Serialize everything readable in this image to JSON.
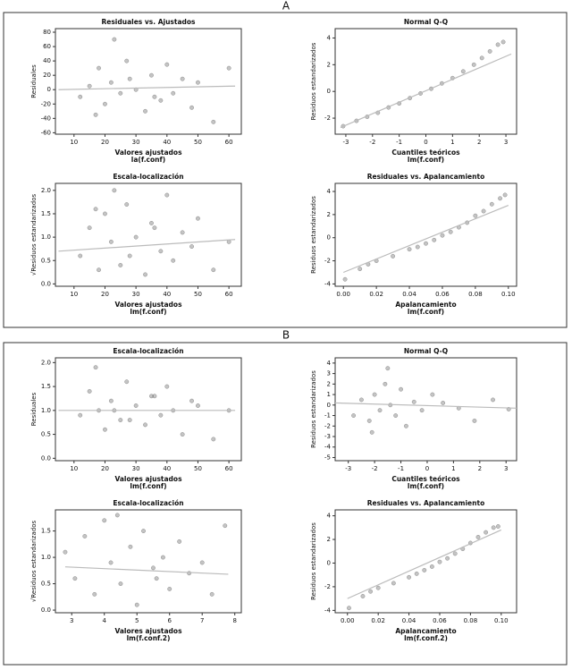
{
  "sections": [
    "A",
    "B"
  ],
  "chart_data": [
    {
      "type": "scatter",
      "title": "Residuales vs. Ajustados",
      "xlabel": [
        "Valores ajustados",
        "la(f.conf)"
      ],
      "ylabel": "Residuales",
      "xlim": [
        4,
        64
      ],
      "xticks": [
        10,
        20,
        30,
        40,
        50,
        60
      ],
      "ylim": [
        -62,
        85
      ],
      "yticks": [
        -60,
        -40,
        -20,
        0,
        20,
        40,
        60,
        80
      ],
      "color": "#555555",
      "fit_color": "#bbbbbb",
      "x": [
        12,
        15,
        18,
        20,
        22,
        25,
        27,
        30,
        33,
        35,
        38,
        40,
        42,
        45,
        48,
        50,
        55,
        60,
        17,
        28,
        36,
        23
      ],
      "y": [
        -10,
        5,
        30,
        -20,
        10,
        -5,
        40,
        0,
        -30,
        20,
        -15,
        35,
        -5,
        15,
        -25,
        10,
        -45,
        30,
        -35,
        15,
        -10,
        70
      ],
      "fit": {
        "x": [
          5,
          62
        ],
        "y": [
          0,
          5
        ]
      }
    },
    {
      "type": "scatter",
      "title": "Normal Q-Q",
      "xlabel": [
        "Cuantiles teóricos",
        "lm(f.conf)"
      ],
      "ylabel": "Residuos estandarizados",
      "xlim": [
        -3.4,
        3.4
      ],
      "xticks": [
        -3,
        -2,
        -1,
        0,
        1,
        2,
        3
      ],
      "ylim": [
        -3.2,
        4.7
      ],
      "yticks": [
        -2,
        0,
        2,
        4
      ],
      "color": "#555555",
      "fit_color": "#bbbbbb",
      "x": [
        -3.1,
        -2.6,
        -2.2,
        -1.8,
        -1.4,
        -1,
        -0.6,
        -0.2,
        0.2,
        0.6,
        1,
        1.4,
        1.8,
        2.1,
        2.4,
        2.7,
        2.9
      ],
      "y": [
        -2.6,
        -2.2,
        -1.9,
        -1.6,
        -1.2,
        -0.9,
        -0.5,
        -0.15,
        0.2,
        0.6,
        1.0,
        1.5,
        2.0,
        2.5,
        3.0,
        3.5,
        3.7
      ],
      "fit": {
        "x": [
          -3.2,
          3.2
        ],
        "y": [
          -2.7,
          2.8
        ]
      }
    },
    {
      "type": "scatter",
      "title": "Escala-localización",
      "xlabel": [
        "Valores ajustados",
        "lm(f.conf)"
      ],
      "ylabel": "√Residuos estandarizados",
      "xlim": [
        4,
        64
      ],
      "xticks": [
        10,
        20,
        30,
        40,
        50,
        60
      ],
      "ylim": [
        -0.05,
        2.15
      ],
      "yticks": [
        {
          "value": 0,
          "label": "0.0"
        },
        {
          "value": 0.5,
          "label": "0.5"
        },
        {
          "value": 1,
          "label": "1.0"
        },
        {
          "value": 1.5,
          "label": "1.5"
        },
        {
          "value": 2,
          "label": "2.0"
        }
      ],
      "color": "#555555",
      "fit_color": "#bbbbbb",
      "x": [
        12,
        15,
        18,
        20,
        22,
        25,
        27,
        30,
        33,
        35,
        38,
        40,
        42,
        45,
        48,
        50,
        55,
        60,
        17,
        28,
        36,
        23
      ],
      "y": [
        0.6,
        1.2,
        0.3,
        1.5,
        0.9,
        0.4,
        1.7,
        1.0,
        0.2,
        1.3,
        0.7,
        1.9,
        0.5,
        1.1,
        0.8,
        1.4,
        0.3,
        0.9,
        1.6,
        0.6,
        1.2,
        2.0
      ],
      "fit": {
        "x": [
          5,
          62
        ],
        "y": [
          0.7,
          0.95
        ]
      }
    },
    {
      "type": "scatter",
      "title": "Residuales vs. Apalancamiento",
      "xlabel": [
        "Apalancamiento",
        "lm(f.conf)"
      ],
      "ylabel": "Residuos estandarizados",
      "xlim": [
        -0.005,
        0.105
      ],
      "xticks": [
        {
          "value": 0,
          "label": "0.00"
        },
        {
          "value": 0.02,
          "label": "0.02"
        },
        {
          "value": 0.04,
          "label": "0.04"
        },
        {
          "value": 0.06,
          "label": "0.06"
        },
        {
          "value": 0.08,
          "label": "0.08"
        },
        {
          "value": 0.1,
          "label": "0.10"
        }
      ],
      "ylim": [
        -4.2,
        4.7
      ],
      "yticks": [
        -4,
        -2,
        0,
        2,
        4
      ],
      "color": "#555555",
      "fit_color": "#bbbbbb",
      "x": [
        0.001,
        0.01,
        0.015,
        0.02,
        0.03,
        0.04,
        0.045,
        0.05,
        0.055,
        0.06,
        0.065,
        0.07,
        0.075,
        0.08,
        0.085,
        0.09,
        0.095,
        0.098
      ],
      "y": [
        -3.6,
        -2.7,
        -2.3,
        -2.0,
        -1.6,
        -1.0,
        -0.8,
        -0.5,
        -0.2,
        0.2,
        0.5,
        0.9,
        1.3,
        1.9,
        2.3,
        2.9,
        3.4,
        3.7
      ],
      "fit": {
        "x": [
          0,
          0.1
        ],
        "y": [
          -3,
          2.8
        ]
      }
    },
    {
      "type": "scatter",
      "title": "Escala-localización",
      "xlabel": [
        "Valores ajustados",
        "lm(f.conf)"
      ],
      "ylabel": "Residuales",
      "xlim": [
        4,
        64
      ],
      "xticks": [
        10,
        20,
        30,
        40,
        50,
        60
      ],
      "ylim": [
        -0.05,
        2.1
      ],
      "yticks": [
        {
          "value": 0,
          "label": "0.0"
        },
        {
          "value": 0.5,
          "label": "0.5"
        },
        {
          "value": 1,
          "label": "1.0"
        },
        {
          "value": 1.5,
          "label": "1.5"
        },
        {
          "value": 2,
          "label": "2.0"
        }
      ],
      "color": "#555555",
      "fit_color": "#bbbbbb",
      "x": [
        12,
        15,
        18,
        20,
        22,
        25,
        27,
        30,
        33,
        35,
        38,
        40,
        42,
        45,
        48,
        50,
        55,
        60,
        17,
        28,
        36,
        23
      ],
      "y": [
        0.9,
        1.4,
        1.0,
        0.6,
        1.2,
        0.8,
        1.6,
        1.1,
        0.7,
        1.3,
        0.9,
        1.5,
        1.0,
        0.5,
        1.2,
        1.1,
        0.4,
        1.0,
        1.9,
        0.8,
        1.3,
        1.0
      ],
      "fit": {
        "x": [
          5,
          62
        ],
        "y": [
          1.0,
          1.0
        ]
      }
    },
    {
      "type": "scatter",
      "title": "Normal Q-Q",
      "xlabel": [
        "Cuantiles teóricos",
        "lm(f.conf)"
      ],
      "ylabel": "Residuos estandarizados",
      "xlim": [
        -3.5,
        3.4
      ],
      "xticks": [
        -3,
        -2,
        -1,
        0,
        1,
        2,
        3
      ],
      "ylim": [
        -5.3,
        4.5
      ],
      "yticks": [
        -5,
        -4,
        -3,
        -2,
        -1,
        0,
        1,
        2,
        3,
        4
      ],
      "color": "#555555",
      "fit_color": "#bbbbbb",
      "x": [
        -2.8,
        -2.5,
        -2.2,
        -2,
        -1.8,
        -1.6,
        -1.4,
        -1.2,
        -1,
        -0.8,
        -0.5,
        -0.2,
        0.2,
        0.6,
        1.2,
        1.8,
        2.5,
        3.1,
        -1.5,
        -2.1
      ],
      "y": [
        -1,
        0.5,
        -1.5,
        1,
        -0.5,
        2,
        0,
        -1,
        1.5,
        -2,
        0.3,
        -0.5,
        1,
        0.2,
        -0.3,
        -1.5,
        0.5,
        -0.4,
        3.5,
        -2.6
      ],
      "fit": {
        "x": [
          -3.5,
          3.4
        ],
        "y": [
          0.2,
          -0.3
        ]
      }
    },
    {
      "type": "scatter",
      "title": "Escala-localización",
      "xlabel": [
        "Valores ajustados",
        "lm(f.conf.2)"
      ],
      "ylabel": "√Residuos estandarizados",
      "xlim": [
        2.5,
        8.2
      ],
      "xticks": [
        3,
        4,
        5,
        6,
        7,
        8
      ],
      "ylim": [
        -0.05,
        1.9
      ],
      "yticks": [
        {
          "value": 0,
          "label": "0.0"
        },
        {
          "value": 0.5,
          "label": "0.5"
        },
        {
          "value": 1,
          "label": "1.0"
        },
        {
          "value": 1.5,
          "label": "1.5"
        }
      ],
      "color": "#555555",
      "fit_color": "#bbbbbb",
      "x": [
        2.8,
        3.1,
        3.4,
        3.7,
        4,
        4.2,
        4.5,
        4.8,
        5,
        5.2,
        5.5,
        5.8,
        6,
        6.3,
        6.6,
        7,
        7.3,
        7.7,
        4.4,
        5.6
      ],
      "y": [
        1.1,
        0.6,
        1.4,
        0.3,
        1.7,
        0.9,
        0.5,
        1.2,
        0.1,
        1.5,
        0.8,
        1.0,
        0.4,
        1.3,
        0.7,
        0.9,
        0.3,
        1.6,
        1.8,
        0.6
      ],
      "fit": {
        "x": [
          2.8,
          7.8
        ],
        "y": [
          0.82,
          0.68
        ]
      }
    },
    {
      "type": "scatter",
      "title": "Residuales vs. Apalancamiento",
      "xlabel": [
        "Apalancamiento",
        "lm(f.conf.2)"
      ],
      "ylabel": "Residuos estandarizados",
      "xlim": [
        -0.008,
        0.11
      ],
      "xticks": [
        {
          "value": 0,
          "label": "0.00"
        },
        {
          "value": 0.02,
          "label": "0.02"
        },
        {
          "value": 0.04,
          "label": "0.04"
        },
        {
          "value": 0.06,
          "label": "0.06"
        },
        {
          "value": 0.08,
          "label": "0.08"
        },
        {
          "value": 0.1,
          "label": "0.10"
        }
      ],
      "ylim": [
        -4.2,
        4.5
      ],
      "yticks": [
        -4,
        -2,
        0,
        2,
        4
      ],
      "color": "#555555",
      "fit_color": "#bbbbbb",
      "x": [
        0.001,
        0.01,
        0.015,
        0.02,
        0.03,
        0.04,
        0.045,
        0.05,
        0.055,
        0.06,
        0.065,
        0.07,
        0.075,
        0.08,
        0.085,
        0.09,
        0.095,
        0.098
      ],
      "y": [
        -3.8,
        -2.8,
        -2.4,
        -2.1,
        -1.7,
        -1.2,
        -0.9,
        -0.6,
        -0.3,
        0.1,
        0.4,
        0.8,
        1.2,
        1.7,
        2.2,
        2.6,
        3.0,
        3.1
      ],
      "fit": {
        "x": [
          0,
          0.1
        ],
        "y": [
          -3,
          2.8
        ]
      }
    }
  ]
}
